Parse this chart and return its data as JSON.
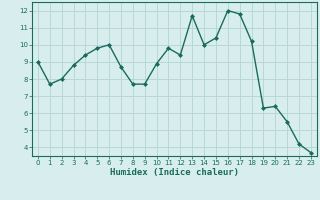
{
  "x": [
    0,
    1,
    2,
    3,
    4,
    5,
    6,
    7,
    8,
    9,
    10,
    11,
    12,
    13,
    14,
    15,
    16,
    17,
    18,
    19,
    20,
    21,
    22,
    23
  ],
  "y": [
    9.0,
    7.7,
    8.0,
    8.8,
    9.4,
    9.8,
    10.0,
    8.7,
    7.7,
    7.7,
    8.9,
    9.8,
    9.4,
    11.7,
    10.0,
    10.4,
    12.0,
    11.8,
    10.2,
    6.3,
    6.4,
    5.5,
    4.2,
    3.7
  ],
  "xlabel": "Humidex (Indice chaleur)",
  "ylabel": "",
  "title": "",
  "xlim": [
    -0.5,
    23.5
  ],
  "ylim": [
    3.5,
    12.5
  ],
  "yticks": [
    4,
    5,
    6,
    7,
    8,
    9,
    10,
    11,
    12
  ],
  "xticks": [
    0,
    1,
    2,
    3,
    4,
    5,
    6,
    7,
    8,
    9,
    10,
    11,
    12,
    13,
    14,
    15,
    16,
    17,
    18,
    19,
    20,
    21,
    22,
    23
  ],
  "line_color": "#1a6b5e",
  "marker": "D",
  "marker_size": 2,
  "bg_color": "#d8eeee",
  "grid_color": "#b8d8d8",
  "axis_color": "#1a6b5e",
  "tick_color": "#1a6b5e",
  "label_color": "#1a6b5e"
}
